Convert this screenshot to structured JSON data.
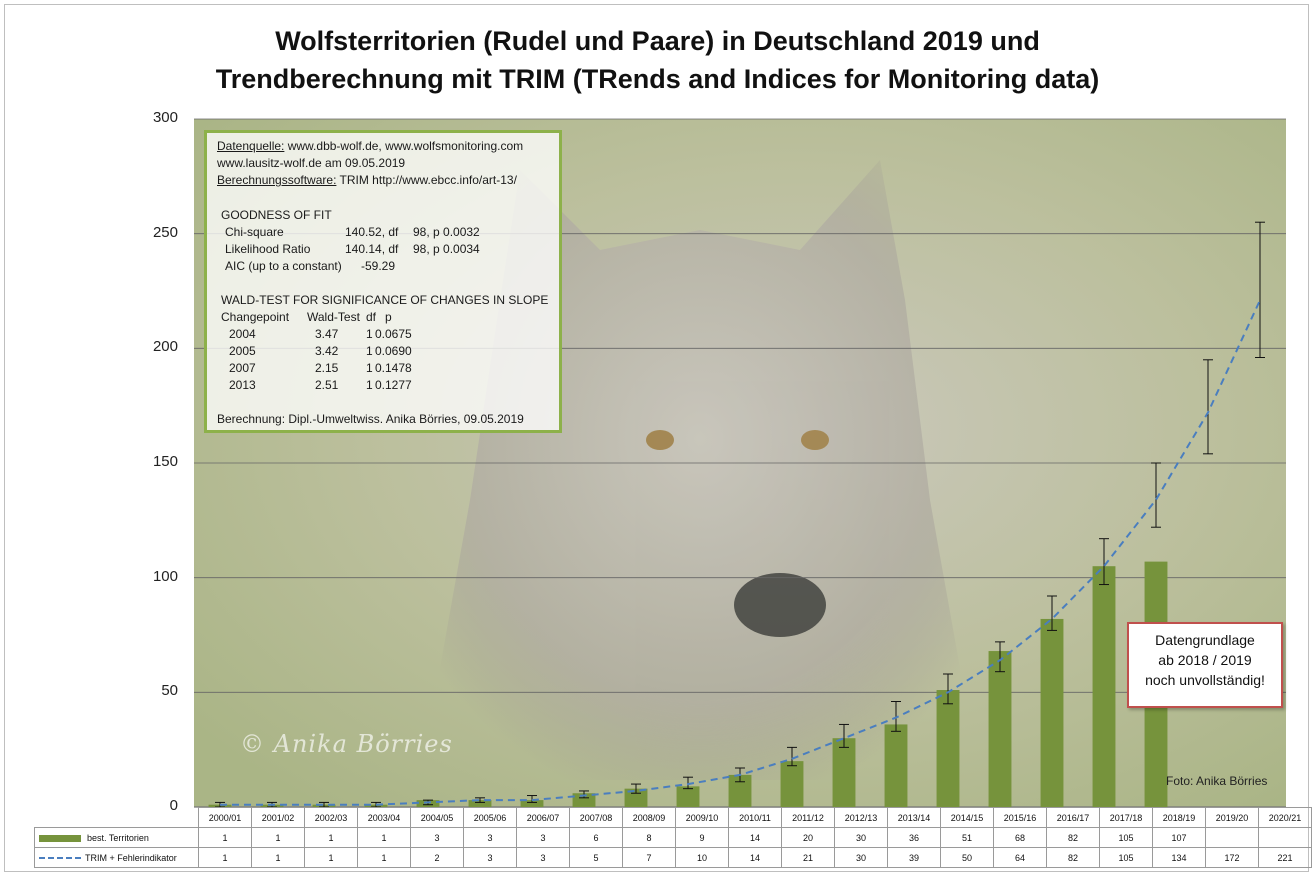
{
  "title_line1": "Wolfsterritorien (Rudel und Paare) in Deutschland 2019 und",
  "title_line2": "Trendberechnung mit TRIM (TRends and Indices for Monitoring data)",
  "chart_data": {
    "type": "bar",
    "categories": [
      "2000/01",
      "2001/02",
      "2002/03",
      "2003/04",
      "2004/05",
      "2005/06",
      "2006/07",
      "2007/08",
      "2008/09",
      "2009/10",
      "2010/11",
      "2011/12",
      "2012/13",
      "2013/14",
      "2014/15",
      "2015/16",
      "2016/17",
      "2017/18",
      "2018/19",
      "2019/20",
      "2020/21"
    ],
    "series": [
      {
        "name": "best. Territorien",
        "kind": "bar",
        "color": "#76933c",
        "values": [
          1,
          1,
          1,
          1,
          3,
          3,
          3,
          6,
          8,
          9,
          14,
          20,
          30,
          36,
          51,
          68,
          82,
          105,
          107,
          null,
          null
        ]
      },
      {
        "name": "TRIM + Fehlerindikator",
        "kind": "dashed-line",
        "color": "#4a7ebf",
        "values": [
          1,
          1,
          1,
          1,
          2,
          3,
          3,
          5,
          7,
          10,
          14,
          21,
          30,
          39,
          50,
          64,
          82,
          105,
          134,
          172,
          221
        ],
        "error_low": [
          0,
          0,
          0,
          0,
          1,
          2,
          2,
          4,
          6,
          8,
          11,
          18,
          26,
          33,
          45,
          59,
          77,
          97,
          122,
          154,
          196
        ],
        "error_high": [
          2,
          2,
          2,
          2,
          3,
          4,
          5,
          7,
          10,
          13,
          17,
          26,
          36,
          46,
          58,
          72,
          92,
          117,
          150,
          195,
          255
        ]
      }
    ],
    "y_ticks": [
      0,
      50,
      100,
      150,
      200,
      250,
      300
    ],
    "ylim": [
      0,
      300
    ],
    "grid": true,
    "legend": "data table below chart"
  },
  "info": {
    "line1_label": "Datenquelle:",
    "line1_text": " www.dbb-wolf.de,  www.wolfsmonitoring.com",
    "line2": "www.lausitz-wolf.de am 09.05.2019",
    "line3_label": "Berechnungssoftware:",
    "line3_text": " TRIM http://www.ebcc.info/art-13/",
    "gof_title": "GOODNESS OF FIT",
    "gof_rows": [
      [
        "Chi-square",
        "140.52, df",
        "98, p 0.0032"
      ],
      [
        "Likelihood  Ratio",
        "140.14, df",
        "98, p 0.0034"
      ],
      [
        "AIC (up to a constant)",
        "-59.29",
        ""
      ]
    ],
    "wald_title": "WALD-TEST FOR SIGNIFICANCE OF CHANGES IN SLOPE",
    "wald_header": [
      "Changepoint",
      "Wald-Test",
      "df",
      "p"
    ],
    "wald_rows": [
      [
        "2004",
        "3.47",
        "1",
        "0.0675"
      ],
      [
        "2005",
        "3.42",
        "1",
        "0.0690"
      ],
      [
        "2007",
        "2.15",
        "1",
        "0.1478"
      ],
      [
        "2013",
        "2.51",
        "1",
        "0.1277"
      ]
    ],
    "footer": "Berechnung: Dipl.-Umweltwiss. Anika Börries, 09.05.2019"
  },
  "note": {
    "line1": "Datengrundlage",
    "line2": "ab 2018 / 2019",
    "line3": "noch unvollständig!"
  },
  "photo_credit": "Foto: Anika Börries",
  "watermark": "© Anika Börries"
}
